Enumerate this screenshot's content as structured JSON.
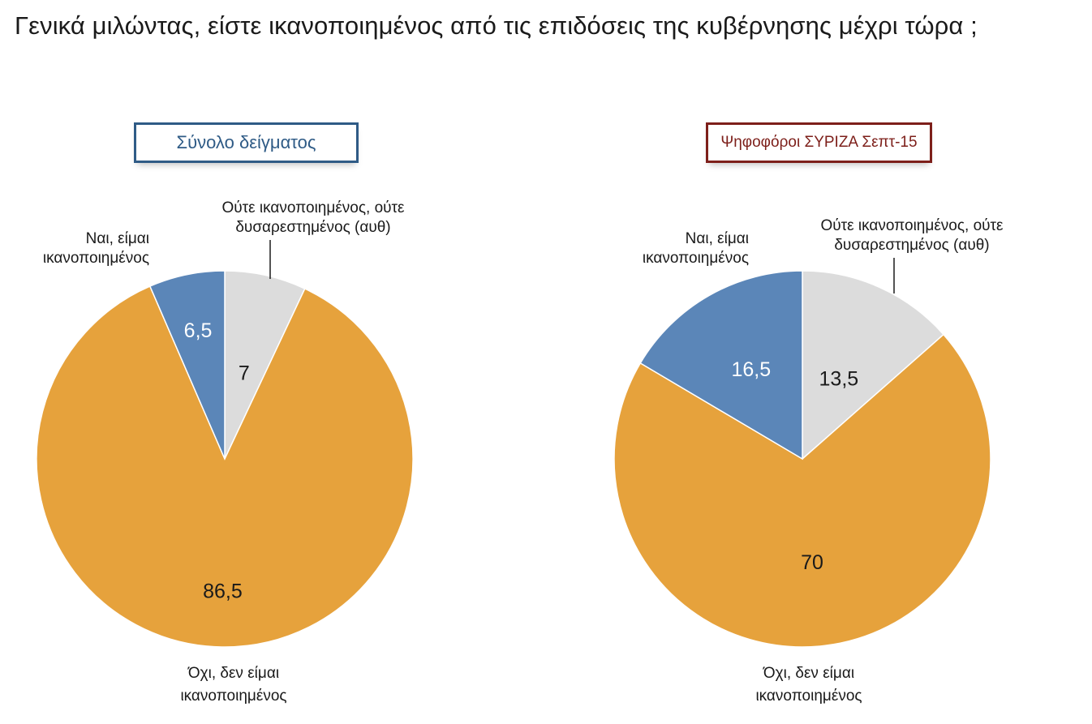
{
  "title": "Γενικά μιλώντας, είστε ικανοποιημένος από τις επιδόσεις της κυβέρνησης μέχρι τώρα ;",
  "chart_data": [
    {
      "type": "pie",
      "title": "Σύνολο δείγματος",
      "title_color": "#2f5b86",
      "slices": [
        {
          "label_lines": [
            "Ναι, είμαι",
            "ικανοποιημένος"
          ],
          "value": 6.5,
          "value_label": "6,5",
          "color": "#5b86b8",
          "value_text_color": "#ffffff"
        },
        {
          "label_lines": [
            "Ούτε ικανοποιημένος, ούτε",
            "δυσαρεστημένος (αυθ)"
          ],
          "value": 7,
          "value_label": "7",
          "color": "#dcdcdc",
          "value_text_color": "#1a1a1a"
        },
        {
          "label_lines": [
            "Όχι, δεν είμαι",
            "ικανοποιημένος"
          ],
          "value": 86.5,
          "value_label": "86,5",
          "color": "#e6a23c",
          "value_text_color": "#1a1a1a"
        }
      ]
    },
    {
      "type": "pie",
      "title": "Ψηφοφόροι ΣΥΡΙΖΑ Σεπτ-15",
      "title_color": "#7d1f1a",
      "slices": [
        {
          "label_lines": [
            "Ναι, είμαι",
            "ικανοποιημένος"
          ],
          "value": 16.5,
          "value_label": "16,5",
          "color": "#5b86b8",
          "value_text_color": "#ffffff"
        },
        {
          "label_lines": [
            "Ούτε ικανοποιημένος, ούτε",
            "δυσαρεστημένος (αυθ)"
          ],
          "value": 13.5,
          "value_label": "13,5",
          "color": "#dcdcdc",
          "value_text_color": "#1a1a1a"
        },
        {
          "label_lines": [
            "Όχι, δεν είμαι",
            "ικανοποιημένος"
          ],
          "value": 70,
          "value_label": "70",
          "color": "#e6a23c",
          "value_text_color": "#1a1a1a"
        }
      ]
    }
  ]
}
